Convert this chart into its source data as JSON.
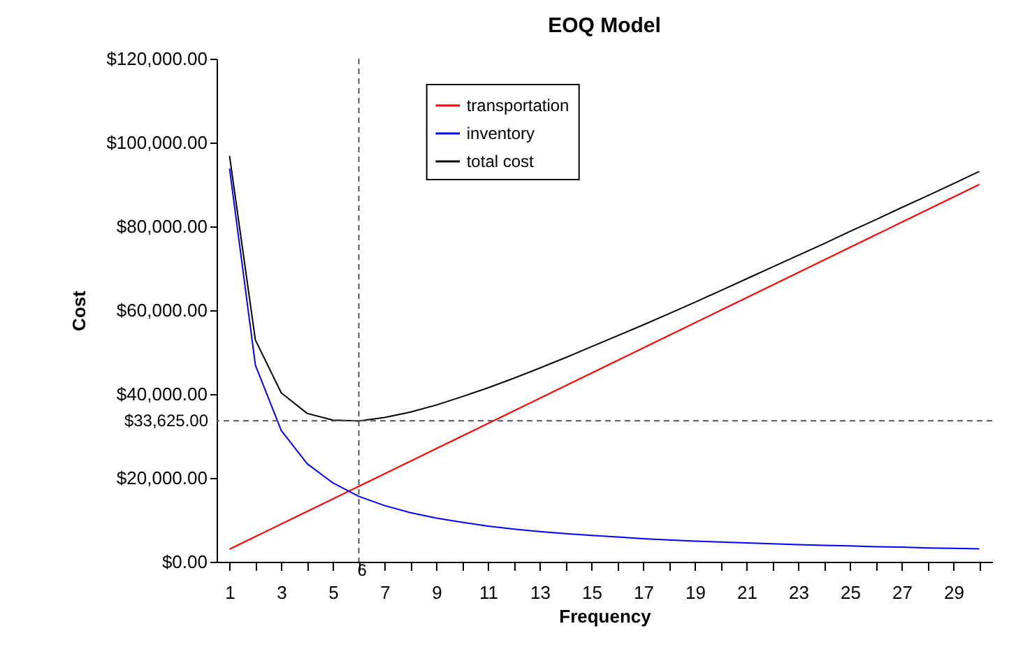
{
  "chart_data": {
    "type": "line",
    "title": "EOQ Model",
    "xlabel": "Frequency",
    "ylabel": "Cost",
    "x": [
      1,
      2,
      3,
      4,
      5,
      6,
      7,
      8,
      9,
      10,
      11,
      12,
      13,
      14,
      15,
      16,
      17,
      18,
      19,
      20,
      21,
      22,
      23,
      24,
      25,
      26,
      27,
      28,
      29,
      30
    ],
    "series": [
      {
        "name": "transportation",
        "color": "#ff0000",
        "values": [
          3000,
          6000,
          9000,
          12000,
          15000,
          18000,
          21000,
          24000,
          27000,
          30000,
          33000,
          36000,
          39000,
          42000,
          45000,
          48000,
          51000,
          54000,
          57000,
          60000,
          63000,
          66000,
          69000,
          72000,
          75000,
          78000,
          81000,
          84000,
          87000,
          90000
        ]
      },
      {
        "name": "inventory",
        "color": "#0000ff",
        "values": [
          93800,
          46900,
          31300,
          23400,
          18800,
          15600,
          13400,
          11700,
          10400,
          9400,
          8500,
          7800,
          7200,
          6700,
          6300,
          5900,
          5500,
          5200,
          4900,
          4700,
          4500,
          4300,
          4100,
          3900,
          3800,
          3600,
          3500,
          3300,
          3200,
          3100
        ]
      },
      {
        "name": "total cost",
        "color": "#000000",
        "values": [
          96800,
          52900,
          40300,
          35400,
          33800,
          33600,
          34400,
          35700,
          37400,
          39400,
          41500,
          43800,
          46200,
          48700,
          51300,
          53900,
          56500,
          59200,
          61900,
          64700,
          67500,
          70300,
          73100,
          75900,
          78800,
          81600,
          84500,
          87300,
          90200,
          93100
        ]
      }
    ],
    "xlim": [
      0.5,
      30.5
    ],
    "xticks": [
      1,
      {
        "value": 2,
        "label": null
      },
      3,
      {
        "value": 4,
        "label": null
      },
      5,
      {
        "value": 6,
        "label": null
      },
      7,
      {
        "value": 8,
        "label": null
      },
      9,
      {
        "value": 10,
        "label": null
      },
      11,
      {
        "value": 12,
        "label": null
      },
      13,
      {
        "value": 14,
        "label": null
      },
      15,
      {
        "value": 16,
        "label": null
      },
      17,
      {
        "value": 18,
        "label": null
      },
      19,
      {
        "value": 20,
        "label": null
      },
      21,
      {
        "value": 22,
        "label": null
      },
      23,
      {
        "value": 24,
        "label": null
      },
      25,
      {
        "value": 26,
        "label": null
      },
      27,
      {
        "value": 28,
        "label": null
      },
      29,
      {
        "value": 30,
        "label": null
      }
    ],
    "ylim": [
      0,
      120000
    ],
    "yticks": [
      {
        "value": 0,
        "label": "$0.00"
      },
      {
        "value": 20000,
        "label": "$20,000.00"
      },
      {
        "value": 40000,
        "label": "$40,000.00"
      },
      {
        "value": 60000,
        "label": "$60,000.00"
      },
      {
        "value": 80000,
        "label": "$80,000.00"
      },
      {
        "value": 100000,
        "label": "$100,000.00"
      },
      {
        "value": 120000,
        "label": "$120,000.00"
      }
    ],
    "ref_lines": [
      {
        "axis": "y",
        "value": 33625,
        "label": "$33,625.00",
        "color": "#555555",
        "line_style": "dashed"
      },
      {
        "axis": "x",
        "value": 6,
        "label": "6",
        "color": "#555555",
        "line_style": "dashed"
      }
    ],
    "grid": false,
    "legend": "top",
    "marker": "none",
    "line_style": "solid"
  }
}
